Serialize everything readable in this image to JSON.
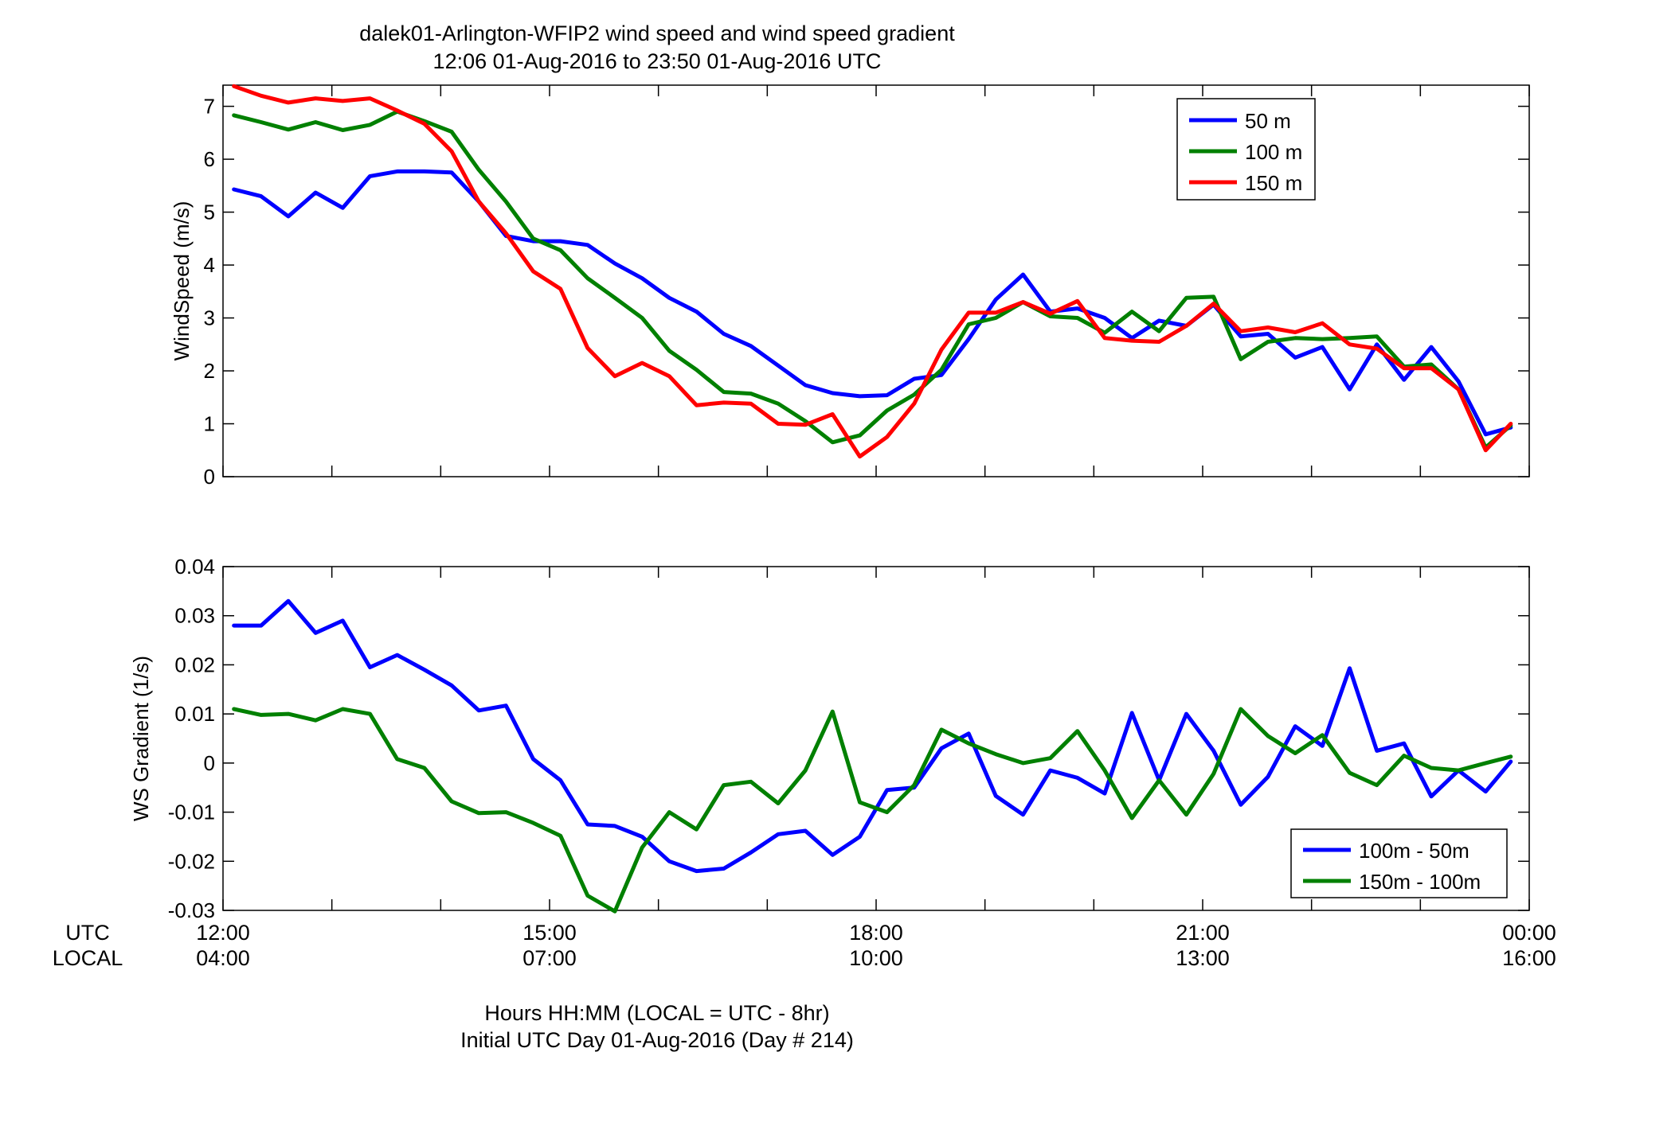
{
  "figure": {
    "title_line1": "dalek01-Arlington-WFIP2  wind speed and wind speed gradient",
    "title_line2": "12:06 01-Aug-2016 to 23:50 01-Aug-2016  UTC",
    "footer_line1": "Hours HH:MM  (LOCAL = UTC - 8hr)",
    "footer_line2": "Initial UTC Day 01-Aug-2016 (Day # 214)",
    "row_label_utc": "UTC",
    "row_label_local": "LOCAL"
  },
  "chart_data": [
    {
      "type": "line",
      "ylabel": "WindSpeed (m/s)",
      "xlim": [
        12,
        24
      ],
      "ylim": [
        0,
        7.4
      ],
      "yticks": [
        0,
        1,
        2,
        3,
        4,
        5,
        6,
        7
      ],
      "ytick_labels": [
        "0",
        "1",
        "2",
        "3",
        "4",
        "5",
        "6",
        "7"
      ],
      "grid": false,
      "legend_position": "top-right",
      "x": [
        12.1,
        12.35,
        12.6,
        12.85,
        13.1,
        13.35,
        13.6,
        13.85,
        14.1,
        14.35,
        14.6,
        14.85,
        15.1,
        15.35,
        15.6,
        15.85,
        16.1,
        16.35,
        16.6,
        16.85,
        17.1,
        17.35,
        17.6,
        17.85,
        18.1,
        18.35,
        18.6,
        18.85,
        19.1,
        19.35,
        19.6,
        19.85,
        20.1,
        20.35,
        20.6,
        20.85,
        21.1,
        21.35,
        21.6,
        21.85,
        22.1,
        22.35,
        22.6,
        22.85,
        23.1,
        23.35,
        23.6,
        23.83
      ],
      "series": [
        {
          "name": "50 m",
          "color": "#0000ff",
          "values": [
            5.43,
            5.3,
            4.92,
            5.37,
            5.08,
            5.68,
            5.77,
            5.77,
            5.75,
            5.2,
            4.55,
            4.45,
            4.45,
            4.38,
            4.03,
            3.75,
            3.38,
            3.12,
            2.7,
            2.47,
            2.1,
            1.73,
            1.58,
            1.52,
            1.54,
            1.85,
            1.92,
            2.6,
            3.35,
            3.82,
            3.12,
            3.18,
            3.0,
            2.62,
            2.95,
            2.85,
            3.25,
            2.65,
            2.7,
            2.25,
            2.45,
            1.65,
            2.5,
            1.83,
            2.45,
            1.8,
            0.8,
            0.93
          ]
        },
        {
          "name": "100 m",
          "color": "#008000",
          "values": [
            6.83,
            6.7,
            6.56,
            6.7,
            6.55,
            6.65,
            6.9,
            6.72,
            6.52,
            5.8,
            5.2,
            4.5,
            4.28,
            3.75,
            3.38,
            3.0,
            2.38,
            2.02,
            1.6,
            1.57,
            1.38,
            1.05,
            0.65,
            0.78,
            1.25,
            1.55,
            2.02,
            2.88,
            3.0,
            3.3,
            3.03,
            3.0,
            2.72,
            3.12,
            2.75,
            3.38,
            3.4,
            2.22,
            2.55,
            2.62,
            2.6,
            2.62,
            2.65,
            2.08,
            2.12,
            1.65,
            0.55,
            0.97
          ]
        },
        {
          "name": "150 m",
          "color": "#ff0000",
          "values": [
            7.38,
            7.2,
            7.07,
            7.15,
            7.1,
            7.15,
            6.92,
            6.67,
            6.15,
            5.2,
            4.6,
            3.88,
            3.55,
            2.43,
            1.9,
            2.15,
            1.9,
            1.35,
            1.4,
            1.38,
            1.0,
            0.98,
            1.18,
            0.38,
            0.75,
            1.38,
            2.4,
            3.1,
            3.1,
            3.3,
            3.08,
            3.32,
            2.62,
            2.57,
            2.55,
            2.85,
            3.27,
            2.75,
            2.82,
            2.73,
            2.9,
            2.5,
            2.42,
            2.05,
            2.05,
            1.65,
            0.5,
            1.0
          ]
        }
      ]
    },
    {
      "type": "line",
      "ylabel": "WS Gradient (1/s)",
      "xlim": [
        12,
        24
      ],
      "ylim": [
        -0.03,
        0.04
      ],
      "yticks": [
        -0.03,
        -0.02,
        -0.01,
        0,
        0.01,
        0.02,
        0.03,
        0.04
      ],
      "ytick_labels": [
        "-0.03",
        "-0.02",
        "-0.01",
        "0",
        "0.01",
        "0.02",
        "0.03",
        "0.04"
      ],
      "xticks": [
        12,
        15,
        18,
        21,
        24
      ],
      "xtick_labels_utc": [
        "12:00",
        "15:00",
        "18:00",
        "21:00",
        "00:00"
      ],
      "xtick_labels_local": [
        "04:00",
        "07:00",
        "10:00",
        "13:00",
        "16:00"
      ],
      "grid": false,
      "legend_position": "bottom-right",
      "x": [
        12.1,
        12.35,
        12.6,
        12.85,
        13.1,
        13.35,
        13.6,
        13.85,
        14.1,
        14.35,
        14.6,
        14.85,
        15.1,
        15.35,
        15.6,
        15.85,
        16.1,
        16.35,
        16.6,
        16.85,
        17.1,
        17.35,
        17.6,
        17.85,
        18.1,
        18.35,
        18.6,
        18.85,
        19.1,
        19.35,
        19.6,
        19.85,
        20.1,
        20.35,
        20.6,
        20.85,
        21.1,
        21.35,
        21.6,
        21.85,
        22.1,
        22.35,
        22.6,
        22.85,
        23.1,
        23.35,
        23.6,
        23.83
      ],
      "series": [
        {
          "name": "100m - 50m",
          "color": "#0000ff",
          "values": [
            0.028,
            0.028,
            0.033,
            0.0265,
            0.029,
            0.0195,
            0.022,
            0.019,
            0.0158,
            0.0107,
            0.0117,
            0.0008,
            -0.0035,
            -0.0125,
            -0.0128,
            -0.015,
            -0.02,
            -0.022,
            -0.0215,
            -0.0182,
            -0.0145,
            -0.0138,
            -0.0187,
            -0.015,
            -0.0055,
            -0.005,
            0.003,
            0.006,
            -0.0067,
            -0.0105,
            -0.0015,
            -0.003,
            -0.0062,
            0.0102,
            -0.0035,
            0.01,
            0.0025,
            -0.0085,
            -0.0028,
            0.0075,
            0.0035,
            0.0193,
            0.0025,
            0.004,
            -0.0068,
            -0.0015,
            -0.0058,
            0.0003
          ]
        },
        {
          "name": "150m - 100m",
          "color": "#008000",
          "values": [
            0.011,
            0.0098,
            0.01,
            0.0087,
            0.011,
            0.01,
            0.0008,
            -0.001,
            -0.0078,
            -0.0102,
            -0.01,
            -0.0122,
            -0.0148,
            -0.027,
            -0.0302,
            -0.0172,
            -0.01,
            -0.0135,
            -0.0045,
            -0.0038,
            -0.0082,
            -0.0015,
            0.0105,
            -0.008,
            -0.01,
            -0.0045,
            0.0068,
            0.004,
            0.0018,
            0.0,
            0.001,
            0.0065,
            -0.0015,
            -0.0112,
            -0.0035,
            -0.0105,
            -0.0022,
            0.011,
            0.0055,
            0.002,
            0.0057,
            -0.002,
            -0.0045,
            0.0015,
            -0.001,
            -0.0015,
            0.0,
            0.0013
          ]
        }
      ]
    }
  ]
}
